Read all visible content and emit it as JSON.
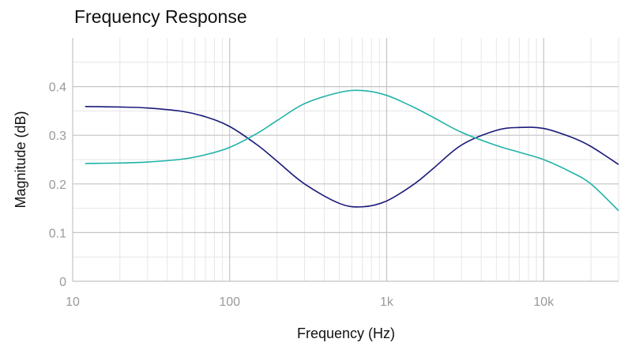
{
  "chart_data": {
    "type": "line",
    "title": "Frequency Response",
    "xlabel": "Frequency (Hz)",
    "ylabel": "Magnitude (dB)",
    "xscale": "log",
    "xlim": [
      10,
      30000
    ],
    "ylim": [
      0,
      0.5
    ],
    "grid": true,
    "legend": "none",
    "x_ticks": [
      {
        "value": 10,
        "label": "10"
      },
      {
        "value": 100,
        "label": "100"
      },
      {
        "value": 1000,
        "label": "1k"
      },
      {
        "value": 10000,
        "label": "10k"
      }
    ],
    "y_ticks": [
      {
        "value": 0,
        "label": "0"
      },
      {
        "value": 0.1,
        "label": "0.1"
      },
      {
        "value": 0.2,
        "label": "0.2"
      },
      {
        "value": 0.3,
        "label": "0.3"
      },
      {
        "value": 0.4,
        "label": "0.4"
      }
    ],
    "x": [
      12,
      20,
      30,
      50,
      70,
      100,
      150,
      200,
      300,
      500,
      700,
      1000,
      1500,
      2000,
      3000,
      5000,
      7000,
      10000,
      15000,
      20000,
      30000
    ],
    "series": [
      {
        "color": "#1a1a7a",
        "values": [
          0.359,
          0.358,
          0.356,
          0.349,
          0.338,
          0.318,
          0.28,
          0.247,
          0.2,
          0.16,
          0.153,
          0.165,
          0.2,
          0.233,
          0.28,
          0.31,
          0.316,
          0.314,
          0.296,
          0.277,
          0.24
        ]
      },
      {
        "color": "#20b2aa",
        "values": [
          0.242,
          0.243,
          0.245,
          0.251,
          0.26,
          0.275,
          0.304,
          0.33,
          0.365,
          0.388,
          0.392,
          0.382,
          0.357,
          0.336,
          0.306,
          0.279,
          0.265,
          0.25,
          0.224,
          0.2,
          0.145
        ]
      }
    ]
  }
}
